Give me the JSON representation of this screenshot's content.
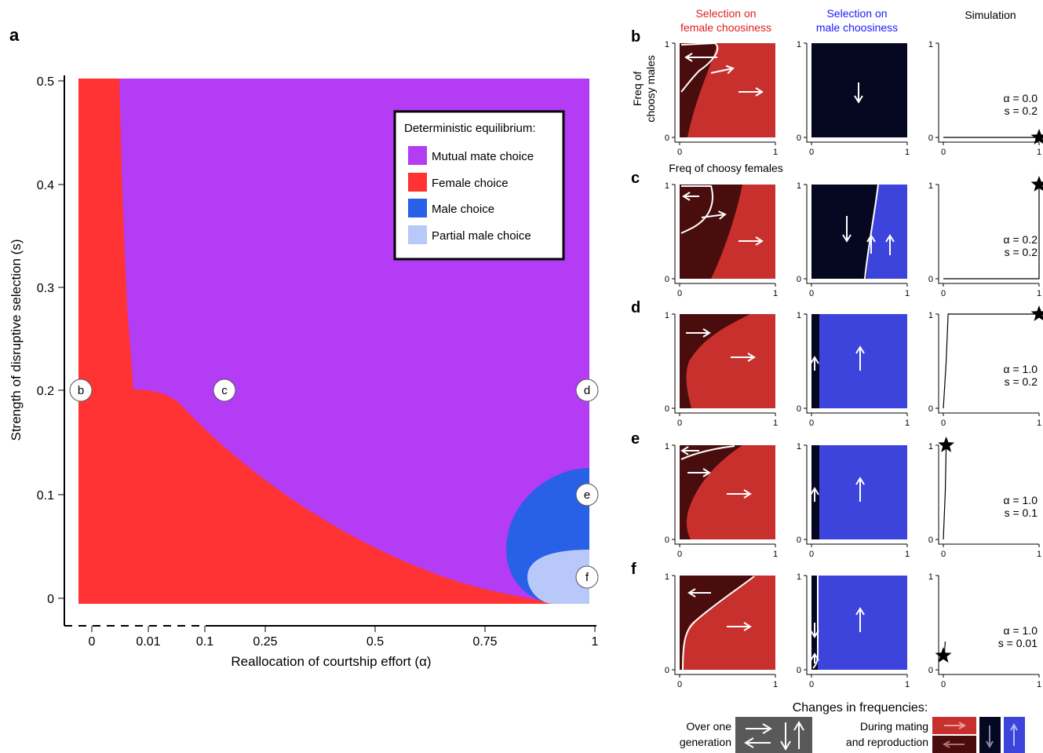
{
  "panel_letters": {
    "a": "a",
    "b": "b",
    "c": "c",
    "d": "d",
    "e": "e",
    "f": "f"
  },
  "column_headers": {
    "female": [
      "Selection on",
      "female choosiness"
    ],
    "male": [
      "Selection on",
      "male choosiness"
    ],
    "sim": "Simulation"
  },
  "colors": {
    "mutual": "#b43cf5",
    "female_choice": "#ff3333",
    "male_choice": "#2860e8",
    "partial_male": "#b8c8f8",
    "female_sel_dark": "#4a0d0d",
    "female_sel_light": "#c8302e",
    "male_sel_dark": "#050820",
    "male_sel_light": "#3c44dc",
    "legend_gray": "#595959"
  },
  "chart_data": [
    {
      "id": "a",
      "type": "area",
      "title": "",
      "xlabel": "Reallocation of courtship effort (α)",
      "ylabel": "Strength of disruptive selection (s)",
      "x_tick_labels": [
        "0",
        "0.01",
        "0.1",
        "0.25",
        "0.5",
        "0.75",
        "1"
      ],
      "y_tick_labels": [
        "0",
        "0.1",
        "0.2",
        "0.3",
        "0.4",
        "0.5"
      ],
      "ylim": [
        0,
        0.5
      ],
      "legend": {
        "title": "Deterministic equilibrium:",
        "position": "top-right",
        "entries": [
          "Mutual mate choice",
          "Female choice",
          "Male choice",
          "Partial male choice"
        ]
      },
      "regions": [
        {
          "name": "Mutual mate choice",
          "description": "upper region for α > ~0.005 above the female-choice boundary"
        },
        {
          "name": "Female choice",
          "boundary_s_at_alpha": [
            [
              0,
              0.5
            ],
            [
              0.003,
              0.5
            ],
            [
              0.007,
              0.2
            ],
            [
              0.05,
              0.19
            ],
            [
              0.25,
              0.1
            ],
            [
              0.5,
              0.04
            ],
            [
              0.75,
              0.01
            ],
            [
              0.92,
              0.0
            ]
          ]
        },
        {
          "name": "Male choice",
          "alpha_range": [
            0.8,
            1.0
          ],
          "s_range": [
            0.0,
            0.125
          ]
        },
        {
          "name": "Partial male choice",
          "alpha_range": [
            0.87,
            1.0
          ],
          "s_range": [
            0.0,
            0.05
          ]
        }
      ],
      "markers": [
        {
          "label": "b",
          "alpha": 0,
          "s": 0.2
        },
        {
          "label": "c",
          "alpha": 0.2,
          "s": 0.2
        },
        {
          "label": "d",
          "alpha": 1.0,
          "s": 0.2
        },
        {
          "label": "e",
          "alpha": 1.0,
          "s": 0.1
        },
        {
          "label": "f",
          "alpha": 1.0,
          "s": 0.01
        }
      ]
    },
    {
      "id": "b-f",
      "type": "line",
      "x_axis_title": "Freq of choosy females",
      "y_axis_title": [
        "Freq of",
        "choosy males"
      ],
      "tick_labels": [
        "0",
        "1"
      ],
      "rows": [
        {
          "panel": "b",
          "alpha_text": "α = 0.0",
          "s_text": "s = 0.2",
          "sim_path": [
            [
              0,
              0
            ],
            [
              1,
              0
            ]
          ],
          "sim_end": [
            1,
            0
          ]
        },
        {
          "panel": "c",
          "alpha_text": "α = 0.2",
          "s_text": "s = 0.2",
          "sim_path": [
            [
              0,
              0
            ],
            [
              1,
              0
            ],
            [
              1,
              1
            ]
          ],
          "sim_end": [
            1,
            1
          ]
        },
        {
          "panel": "d",
          "alpha_text": "α = 1.0",
          "s_text": "s = 0.2",
          "sim_path": [
            [
              0,
              0
            ],
            [
              0.03,
              0.5
            ],
            [
              0.05,
              1
            ],
            [
              1,
              1
            ]
          ],
          "sim_end": [
            1,
            1
          ]
        },
        {
          "panel": "e",
          "alpha_text": "α = 1.0",
          "s_text": "s = 0.1",
          "sim_path": [
            [
              0,
              0
            ],
            [
              0.02,
              0.5
            ],
            [
              0.03,
              1
            ]
          ],
          "sim_end": [
            0.03,
            1
          ]
        },
        {
          "panel": "f",
          "alpha_text": "α = 1.0",
          "s_text": "s = 0.01",
          "sim_path": [
            [
              0.02,
              0.3
            ],
            [
              0.01,
              0.15
            ]
          ],
          "sim_end": [
            0,
            0.15
          ]
        }
      ]
    }
  ],
  "bottom_legend": {
    "title": "Changes in frequencies:",
    "over_one": [
      "Over one",
      "generation"
    ],
    "during": [
      "During mating",
      "and reproduction"
    ]
  }
}
